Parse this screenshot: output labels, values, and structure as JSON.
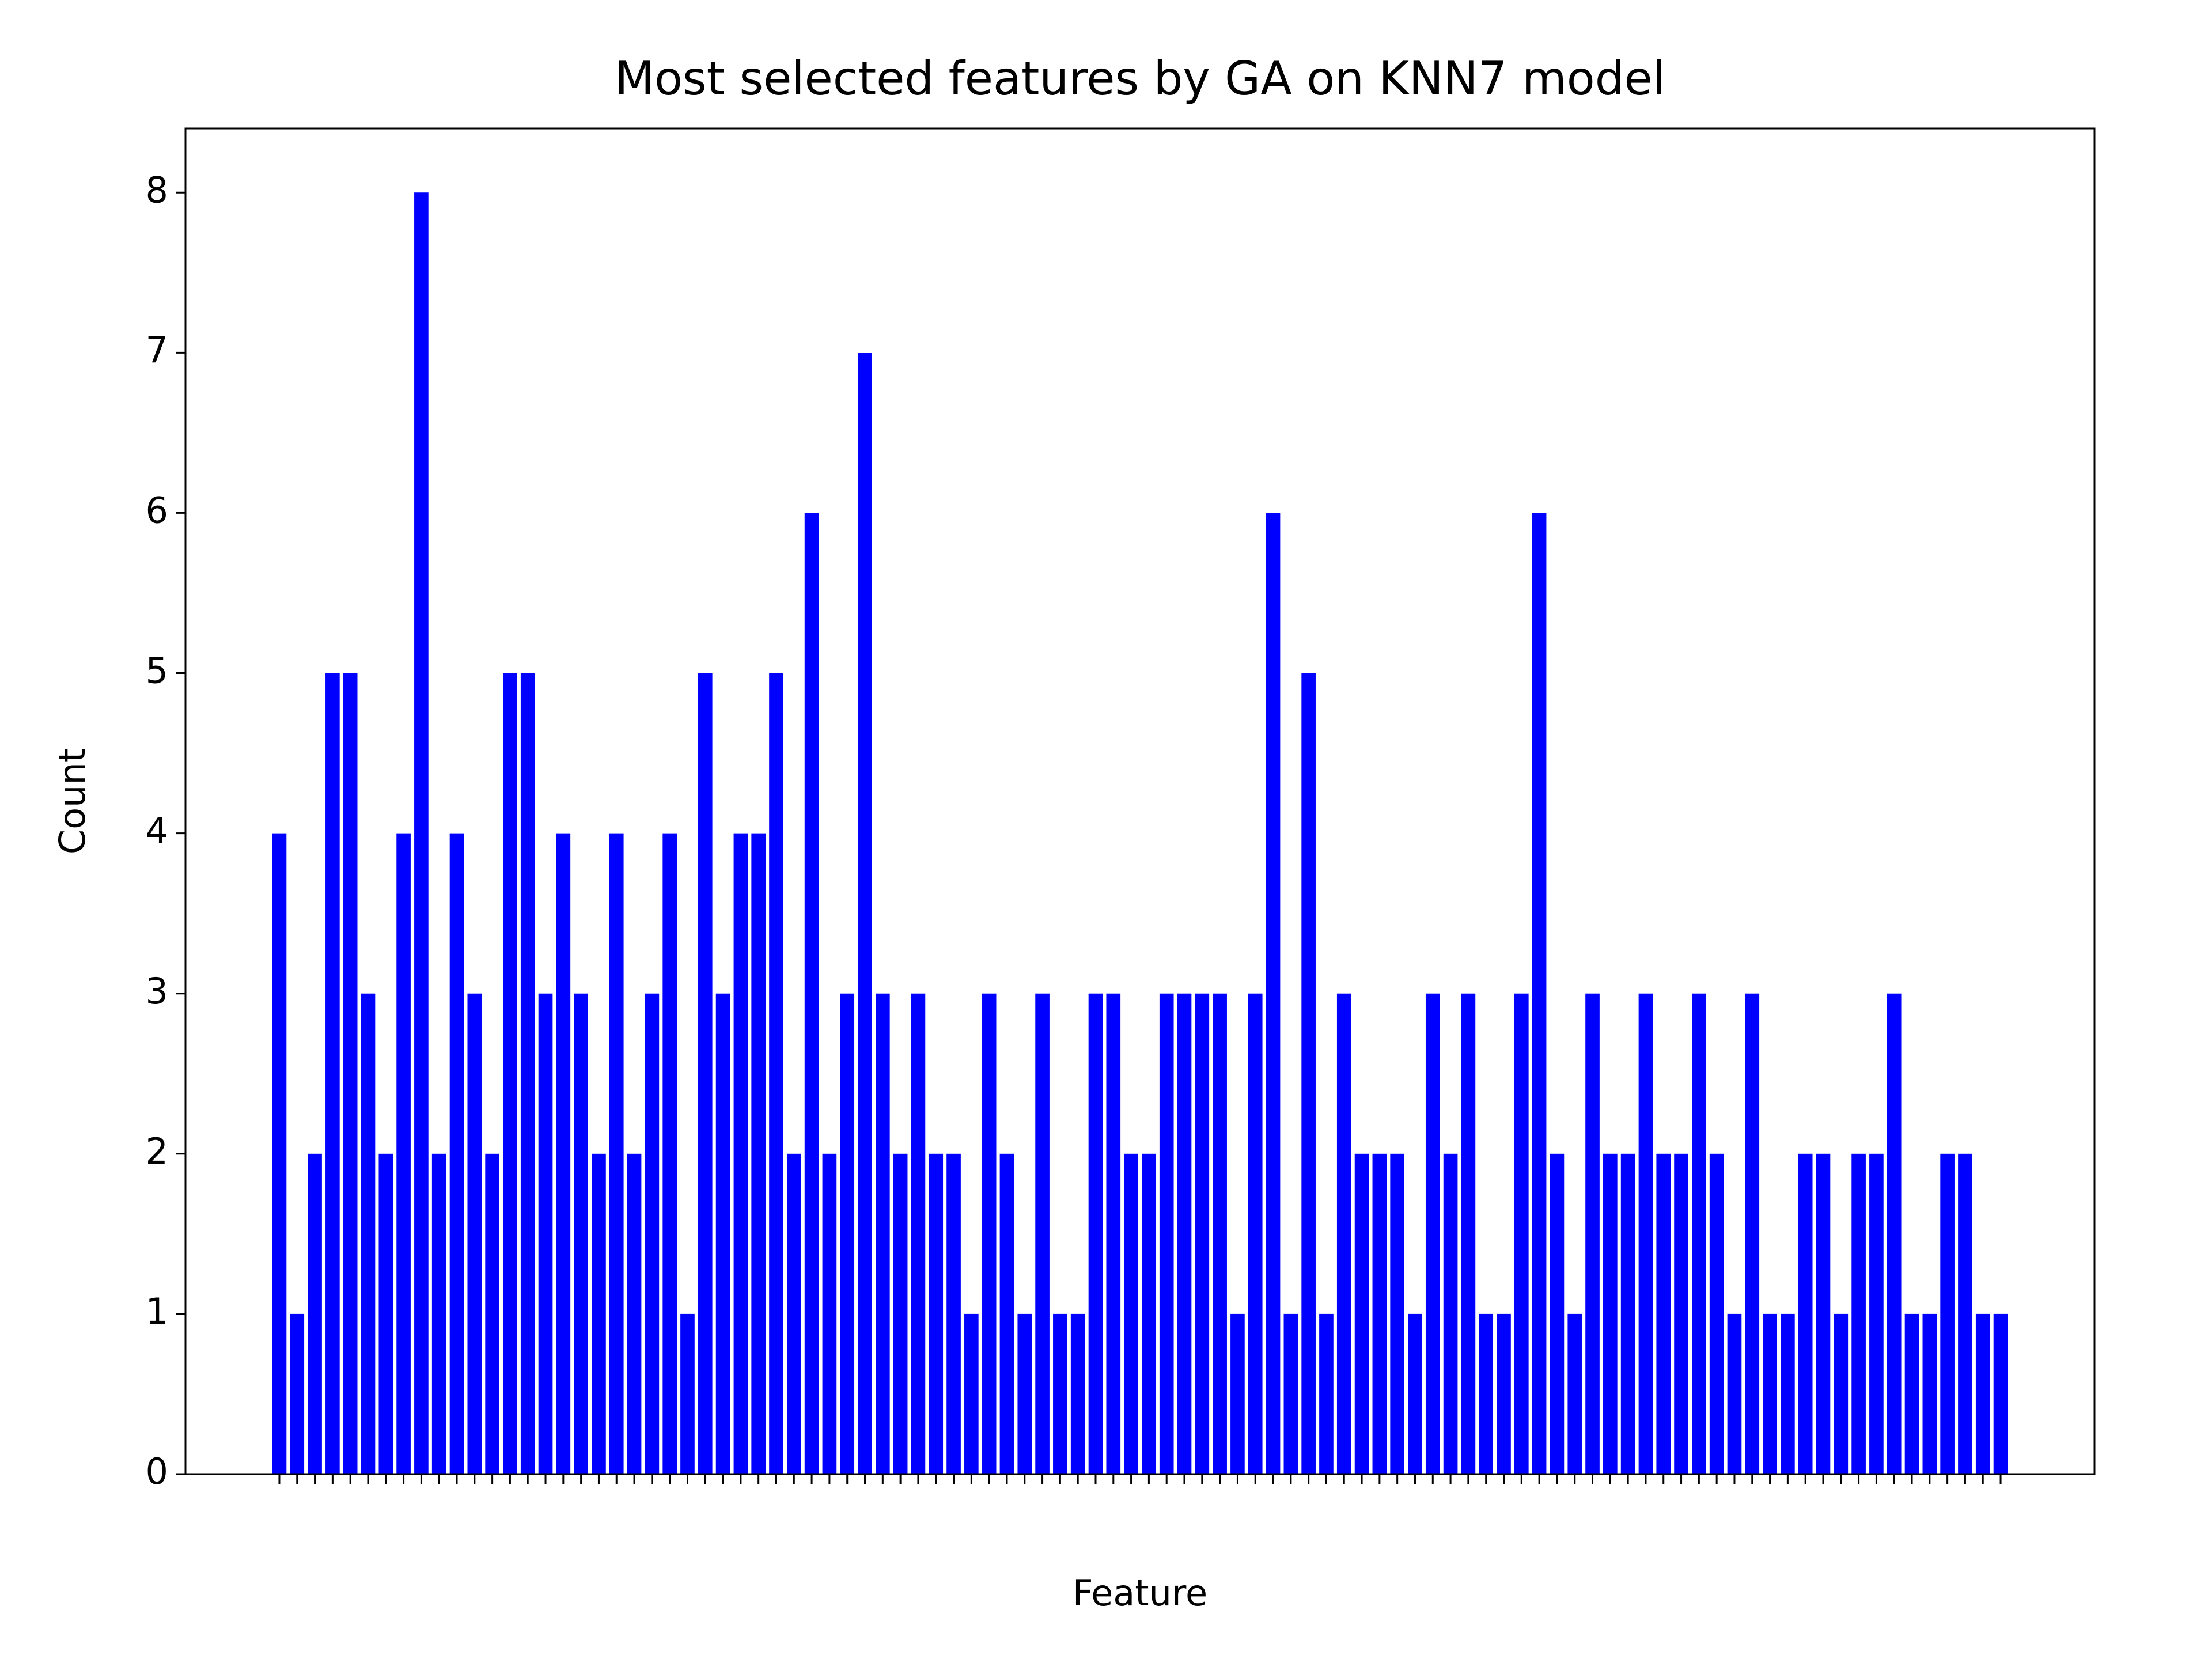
{
  "chart_data": {
    "type": "bar",
    "title": "Most selected features by GA on KNN7 model",
    "x_label": "Feature",
    "y_label": "Count",
    "color": "#0000ff",
    "categories": [
      null,
      null,
      null,
      null,
      null,
      null,
      null,
      null,
      null,
      null,
      null,
      null,
      null,
      null,
      null,
      null,
      null,
      null,
      null,
      null,
      null,
      null,
      null,
      null,
      null,
      null,
      null,
      null,
      null,
      null,
      null,
      null,
      null,
      null,
      null,
      null,
      null,
      null,
      null,
      null,
      null,
      null,
      null,
      null,
      null,
      null,
      null,
      null,
      null,
      null,
      null,
      null,
      null,
      null,
      null,
      null,
      null,
      null,
      null,
      null,
      null,
      null,
      null,
      null,
      null,
      null,
      null,
      null,
      null,
      null,
      null,
      null,
      null,
      null,
      null,
      null,
      null,
      null,
      null,
      null,
      null,
      null,
      null,
      null,
      null,
      null,
      null,
      null,
      null,
      null,
      null,
      null,
      null,
      null,
      null,
      null,
      null,
      null
    ],
    "values": [
      4,
      1,
      2,
      5,
      5,
      3,
      2,
      4,
      8,
      2,
      4,
      3,
      2,
      5,
      5,
      3,
      4,
      3,
      2,
      4,
      2,
      3,
      4,
      1,
      5,
      3,
      4,
      4,
      5,
      2,
      6,
      2,
      3,
      7,
      3,
      2,
      3,
      2,
      2,
      1,
      3,
      2,
      1,
      3,
      1,
      1,
      3,
      3,
      2,
      2,
      3,
      3,
      3,
      3,
      1,
      3,
      6,
      1,
      5,
      1,
      3,
      2,
      2,
      2,
      1,
      3,
      2,
      3,
      1,
      1,
      3,
      6,
      2,
      1,
      3,
      2,
      2,
      3,
      2,
      2,
      3,
      2,
      1,
      3,
      1,
      1,
      2,
      2,
      1,
      2,
      2,
      3,
      1,
      1,
      2,
      2,
      1,
      1
    ],
    "ylim": [
      0,
      8.4
    ],
    "yticks": [
      0,
      1,
      2,
      3,
      4,
      5,
      6,
      7,
      8
    ]
  }
}
